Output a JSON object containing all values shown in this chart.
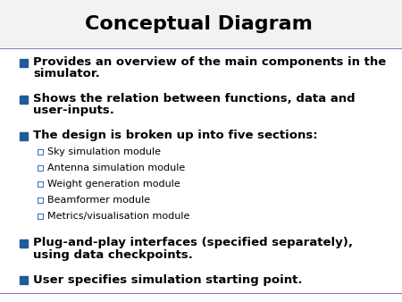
{
  "title": "Conceptual Diagram",
  "title_fontsize": 16,
  "title_color": "#000000",
  "background_color": "#ffffff",
  "header_line_color": "#8080c0",
  "bottom_line_color": "#8080c0",
  "bullet_square_color": "#1F5C9E",
  "sub_square_color": "#4472c4",
  "bullet_fontsize": 9.5,
  "sub_fontsize": 8.0,
  "main_bullets": [
    {
      "text": "Provides an overview of the main components in the simulator.",
      "sub_items": []
    },
    {
      "text": "Shows the relation between functions, data and user-inputs.",
      "sub_items": []
    },
    {
      "text": "The design is broken up into five sections:",
      "sub_items": [
        "Sky simulation module",
        "Antenna simulation module",
        "Weight generation module",
        "Beamformer module",
        "Metrics/visualisation module"
      ]
    },
    {
      "text": "Plug-and-play interfaces (specified separately), using data checkpoints.",
      "sub_items": []
    },
    {
      "text": "User specifies simulation starting point.",
      "sub_items": []
    }
  ]
}
